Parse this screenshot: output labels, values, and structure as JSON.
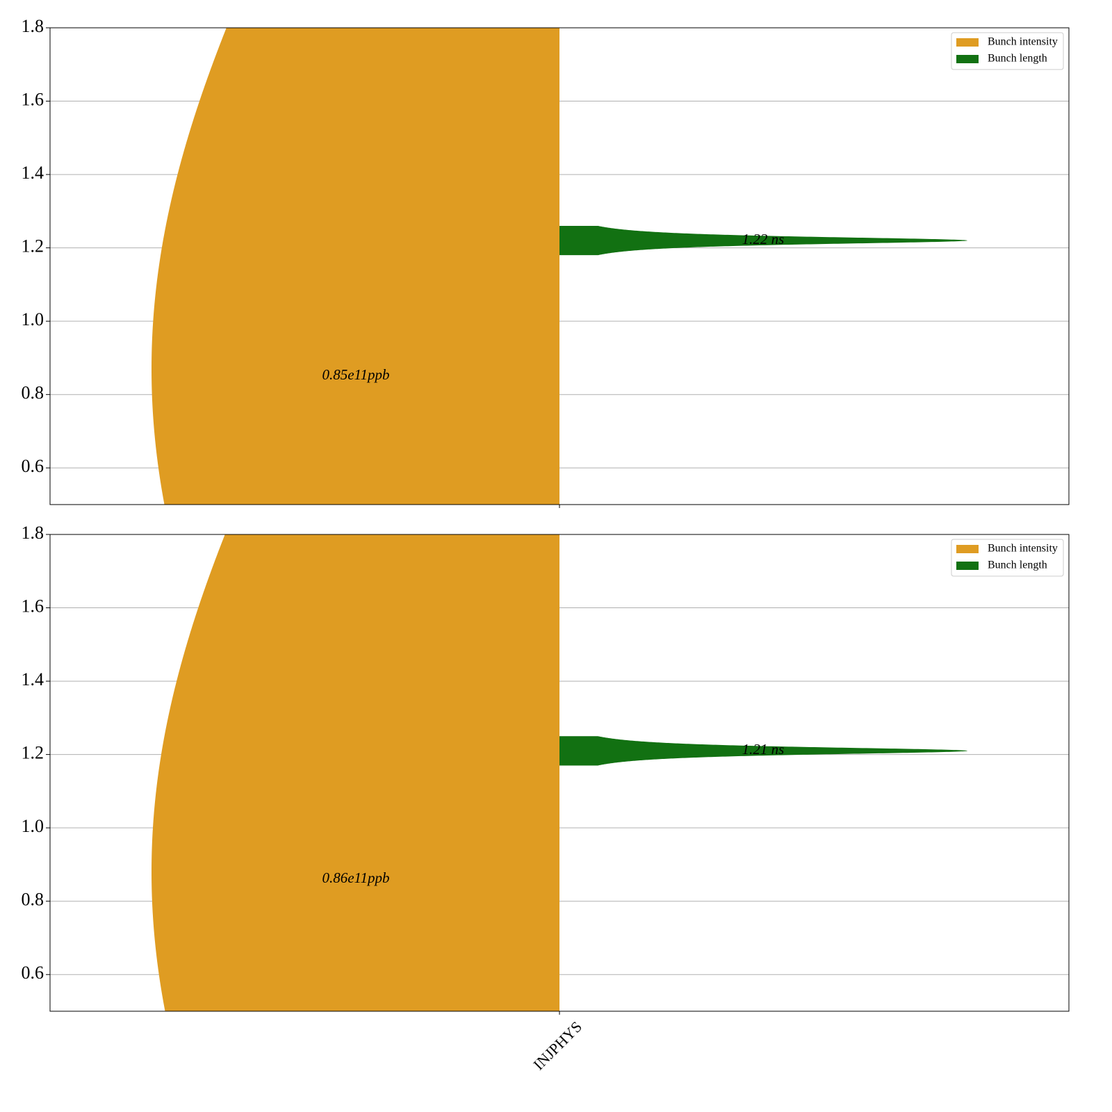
{
  "chart_data": [
    {
      "type": "violin",
      "categories": [
        null
      ],
      "series": [
        {
          "name": "Bunch intensity",
          "color": "#df9c22",
          "values": [
            0.85
          ],
          "value_labels": [
            "0.85e11ppb"
          ]
        },
        {
          "name": "Bunch length",
          "color": "#127112",
          "values": [
            1.22
          ],
          "value_labels": [
            "1.22 ns"
          ]
        }
      ],
      "ylim": [
        0.5,
        1.8
      ],
      "yticks": [
        0.6,
        0.8,
        {
          "value": 1.0,
          "label": "1.0"
        },
        1.2,
        1.4,
        1.6,
        1.8
      ],
      "grid": true,
      "legend": "upper right"
    },
    {
      "type": "violin",
      "categories": [
        "INJPHYS"
      ],
      "series": [
        {
          "name": "Bunch intensity",
          "color": "#df9c22",
          "values": [
            0.86
          ],
          "value_labels": [
            "0.86e11ppb"
          ]
        },
        {
          "name": "Bunch length",
          "color": "#127112",
          "values": [
            1.21
          ],
          "value_labels": [
            "1.21 ns"
          ]
        }
      ],
      "ylim": [
        0.5,
        1.8
      ],
      "yticks": [
        0.6,
        0.8,
        {
          "value": 1.0,
          "label": "1.0"
        },
        1.2,
        1.4,
        1.6,
        1.8
      ],
      "grid": true,
      "legend": "upper right"
    }
  ]
}
